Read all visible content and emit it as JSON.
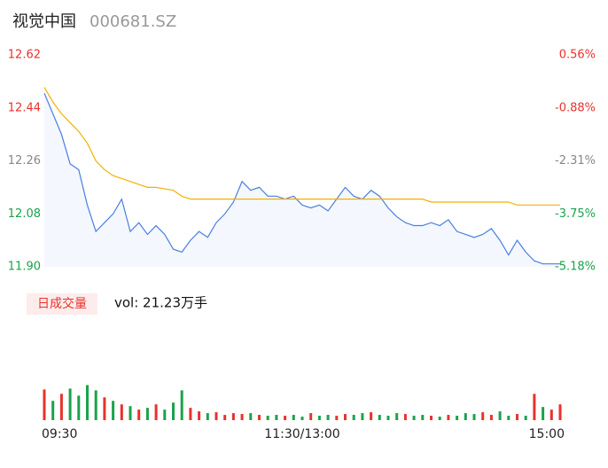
{
  "chart_data": {
    "type": "intraday",
    "title": "视觉中国",
    "subtitle": "000681.SZ",
    "volume_label": "日成交量",
    "volume_text": "vol: 21.23万手",
    "x": [
      0,
      4,
      8,
      12,
      16,
      20,
      24,
      28,
      32,
      36,
      40,
      44,
      48,
      52,
      56,
      60,
      64,
      68,
      72,
      76,
      80,
      84,
      88,
      92,
      96,
      100,
      104,
      108,
      112,
      116,
      120,
      124,
      128,
      132,
      136,
      140,
      144,
      148,
      152,
      156,
      160,
      164,
      168,
      172,
      176,
      180,
      184,
      188,
      192,
      196,
      200,
      204,
      208,
      212,
      216,
      220,
      224,
      228,
      232,
      236,
      240
    ],
    "xlim": [
      0,
      240
    ],
    "xticks": [
      {
        "value": 0,
        "label": "09:30"
      },
      {
        "value": 120,
        "label": "11:30/13:00"
      },
      {
        "value": 240,
        "label": "15:00"
      }
    ],
    "ylim": [
      11.9,
      12.62
    ],
    "yticks": [
      11.9,
      12.08,
      12.26,
      12.44,
      12.62
    ],
    "ytick_labels": [
      "11.90",
      "12.08",
      "12.26",
      "12.44",
      "12.62"
    ],
    "ytick_colors": [
      "#1aa34a",
      "#1aa34a",
      "#888888",
      "#e8322c",
      "#e8322c"
    ],
    "y2lim": [
      -5.18,
      0.56
    ],
    "y2ticks": [
      {
        "value": -5.18,
        "label": "-5.18%"
      },
      {
        "value": -3.75,
        "label": "-3.75%"
      },
      {
        "value": -2.31,
        "label": "-2.31%"
      },
      {
        "value": -0.88,
        "label": "-0.88%"
      },
      {
        "value": 0.56,
        "label": "0.56%"
      }
    ],
    "series": [
      {
        "name": "price",
        "color": "#4a7fe0",
        "values": [
          12.49,
          12.42,
          12.35,
          12.25,
          12.23,
          12.11,
          12.02,
          12.05,
          12.08,
          12.13,
          12.02,
          12.05,
          12.01,
          12.04,
          12.01,
          11.96,
          11.95,
          11.99,
          12.02,
          12.0,
          12.05,
          12.08,
          12.12,
          12.19,
          12.16,
          12.17,
          12.14,
          12.14,
          12.13,
          12.14,
          12.11,
          12.1,
          12.11,
          12.09,
          12.13,
          12.17,
          12.14,
          12.13,
          12.16,
          12.14,
          12.1,
          12.07,
          12.05,
          12.04,
          12.04,
          12.05,
          12.04,
          12.06,
          12.02,
          12.01,
          12.0,
          12.01,
          12.03,
          11.99,
          11.94,
          11.99,
          11.95,
          11.92,
          11.91,
          11.91,
          11.91
        ]
      },
      {
        "name": "average",
        "color": "#f5b000",
        "values": [
          12.51,
          12.46,
          12.42,
          12.39,
          12.36,
          12.32,
          12.26,
          12.23,
          12.21,
          12.2,
          12.19,
          12.18,
          12.17,
          12.17,
          12.165,
          12.16,
          12.14,
          12.13,
          12.13,
          12.13,
          12.13,
          12.13,
          12.13,
          12.13,
          12.13,
          12.13,
          12.13,
          12.13,
          12.13,
          12.13,
          12.13,
          12.13,
          12.13,
          12.13,
          12.13,
          12.13,
          12.13,
          12.13,
          12.13,
          12.13,
          12.13,
          12.13,
          12.13,
          12.13,
          12.13,
          12.12,
          12.12,
          12.12,
          12.12,
          12.12,
          12.12,
          12.12,
          12.12,
          12.12,
          12.12,
          12.11,
          12.11,
          12.11,
          12.11,
          12.11,
          12.11
        ]
      }
    ],
    "volume": {
      "values": [
        35,
        22,
        30,
        36,
        28,
        40,
        34,
        26,
        22,
        18,
        16,
        12,
        14,
        18,
        12,
        20,
        34,
        14,
        10,
        8,
        9,
        6,
        8,
        7,
        8,
        6,
        5,
        6,
        5,
        6,
        4,
        8,
        5,
        6,
        5,
        7,
        6,
        8,
        9,
        6,
        5,
        8,
        7,
        5,
        6,
        5,
        4,
        6,
        5,
        8,
        7,
        9,
        6,
        10,
        5,
        7,
        5,
        30,
        15,
        12,
        18
      ],
      "vlim": [
        0,
        90
      ],
      "colors": [
        "#e8322c",
        "#1aa34a",
        "#e8322c",
        "#1aa34a",
        "#1aa34a",
        "#1aa34a",
        "#1aa34a",
        "#e8322c",
        "#1aa34a",
        "#e8322c",
        "#1aa34a",
        "#e8322c",
        "#1aa34a",
        "#e8322c",
        "#1aa34a",
        "#1aa34a",
        "#1aa34a",
        "#e8322c",
        "#e8322c",
        "#1aa34a",
        "#e8322c",
        "#e8322c",
        "#e8322c",
        "#e8322c",
        "#1aa34a",
        "#e8322c",
        "#1aa34a",
        "#1aa34a",
        "#e8322c",
        "#1aa34a",
        "#1aa34a",
        "#e8322c",
        "#1aa34a",
        "#1aa34a",
        "#e8322c",
        "#e8322c",
        "#1aa34a",
        "#1aa34a",
        "#e8322c",
        "#1aa34a",
        "#1aa34a",
        "#1aa34a",
        "#e8322c",
        "#1aa34a",
        "#1aa34a",
        "#e8322c",
        "#1aa34a",
        "#e8322c",
        "#1aa34a",
        "#1aa34a",
        "#1aa34a",
        "#e8322c",
        "#e8322c",
        "#1aa34a",
        "#1aa34a",
        "#e8322c",
        "#1aa34a",
        "#e8322c",
        "#1aa34a",
        "#e8322c",
        "#e8322c"
      ]
    }
  }
}
